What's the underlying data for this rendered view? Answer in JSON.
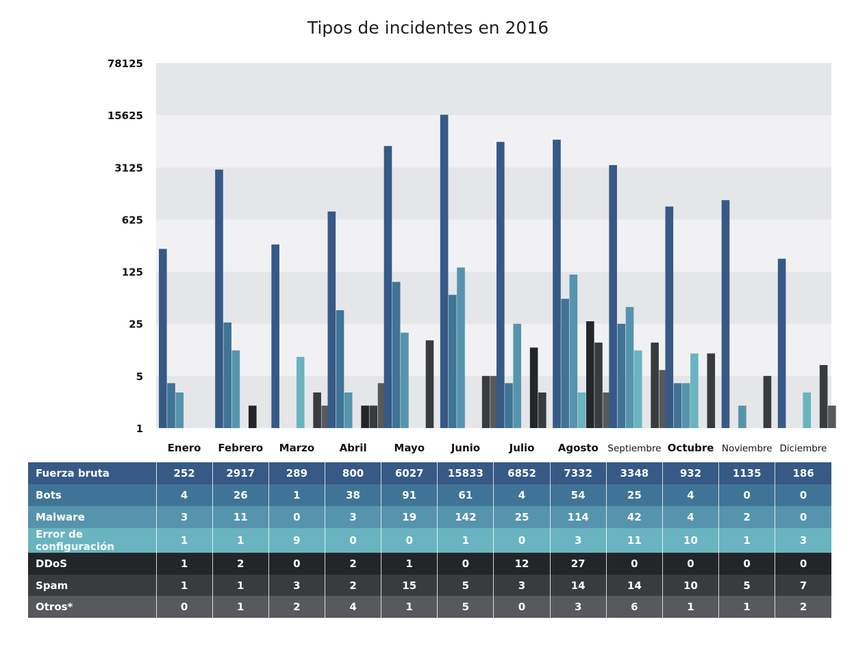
{
  "title": "Tipos de incidentes en 2016",
  "colors": {
    "band_dark": "#e5e6e8",
    "band_light": "#f1f1f3",
    "Fuerza bruta": "#365986",
    "Bots": "#3f7496",
    "Malware": "#5694ad",
    "Error de configuración": "#69b4c0",
    "DDoS": "#232629",
    "Spam": "#393c3f",
    "Otros*": "#57595c"
  },
  "chart_data": {
    "type": "bar",
    "title": "Tipos de incidentes en 2016",
    "y_scale": "log",
    "ylim": [
      1,
      78125
    ],
    "yticks": [
      1,
      5,
      25,
      125,
      625,
      3125,
      15625,
      78125
    ],
    "categories": [
      "Enero",
      "Febrero",
      "Marzo",
      "Abril",
      "Mayo",
      "Junio",
      "Julio",
      "Agosto",
      "Septiembre",
      "Octubre",
      "Noviembre",
      "Diciembre"
    ],
    "series": [
      {
        "name": "Fuerza bruta",
        "values": [
          252,
          2917,
          289,
          800,
          6027,
          15833,
          6852,
          7332,
          3348,
          932,
          1135,
          186
        ]
      },
      {
        "name": "Bots",
        "values": [
          4,
          26,
          1,
          38,
          91,
          61,
          4,
          54,
          25,
          4,
          0,
          0
        ]
      },
      {
        "name": "Malware",
        "values": [
          3,
          11,
          0,
          3,
          19,
          142,
          25,
          114,
          42,
          4,
          2,
          0
        ]
      },
      {
        "name": "Error de configuración",
        "values": [
          1,
          1,
          9,
          0,
          0,
          1,
          0,
          3,
          11,
          10,
          1,
          3
        ]
      },
      {
        "name": "DDoS",
        "values": [
          1,
          2,
          0,
          2,
          1,
          0,
          12,
          27,
          0,
          0,
          0,
          0
        ]
      },
      {
        "name": "Spam",
        "values": [
          1,
          1,
          3,
          2,
          15,
          5,
          3,
          14,
          14,
          10,
          5,
          7
        ]
      },
      {
        "name": "Otros*",
        "values": [
          0,
          1,
          2,
          4,
          1,
          5,
          0,
          3,
          6,
          1,
          1,
          2
        ]
      }
    ],
    "grid": "alternating horizontal bands",
    "legend": "data table below chart"
  }
}
